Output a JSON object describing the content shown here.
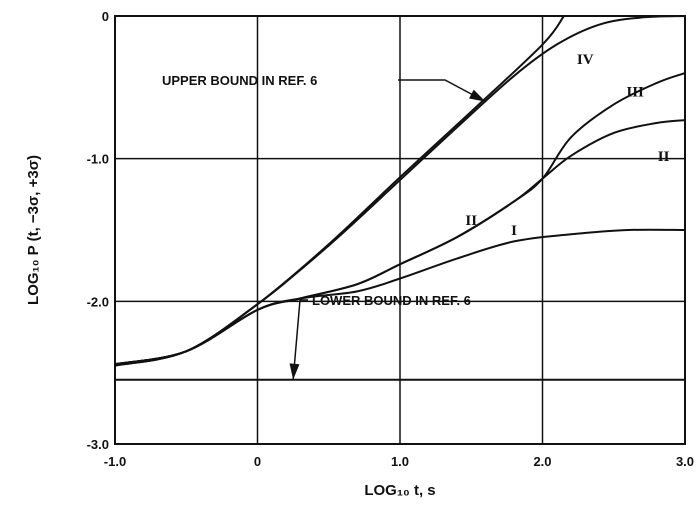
{
  "chart_data": {
    "type": "line",
    "title": "",
    "xlabel": "LOG₁₀ t, s",
    "ylabel": "LOG₁₀ P (t, −3σ, +3σ)",
    "xlim": [
      -1.0,
      3.0
    ],
    "ylim": [
      -3.0,
      0.0
    ],
    "grid": true,
    "x_ticks": [
      -1.0,
      0,
      1.0,
      2.0,
      3.0
    ],
    "x_tick_labels": [
      "-1.0",
      "0",
      "1.0",
      "2.0",
      "3.0"
    ],
    "y_ticks": [
      0,
      -1.0,
      -2.0,
      -3.0
    ],
    "y_tick_labels": [
      "0",
      "-1.0",
      "-2.0",
      "-3.0"
    ],
    "series": [
      {
        "name": "IV",
        "x": [
          -1.0,
          -0.5,
          0.0,
          0.3,
          0.6,
          1.0,
          1.4,
          1.8,
          2.1,
          2.4,
          2.7,
          3.0
        ],
        "y": [
          -2.45,
          -2.35,
          -2.02,
          -1.78,
          -1.52,
          -1.15,
          -0.78,
          -0.42,
          -0.2,
          -0.06,
          -0.01,
          0.0
        ]
      },
      {
        "name": "III",
        "x": [
          -1.0,
          -0.5,
          0.0,
          0.3,
          0.7,
          1.0,
          1.4,
          1.8,
          2.0,
          2.2,
          2.5,
          2.8,
          3.0
        ],
        "y": [
          -2.44,
          -2.35,
          -2.06,
          -1.98,
          -1.88,
          -1.74,
          -1.55,
          -1.3,
          -1.14,
          -0.85,
          -0.62,
          -0.47,
          -0.4
        ]
      },
      {
        "name": "II",
        "x": [
          -1.0,
          -0.5,
          0.0,
          0.3,
          0.7,
          1.0,
          1.4,
          1.8,
          2.0,
          2.2,
          2.5,
          2.8,
          3.0
        ],
        "y": [
          -2.44,
          -2.35,
          -2.06,
          -1.98,
          -1.88,
          -1.74,
          -1.55,
          -1.3,
          -1.14,
          -0.98,
          -0.82,
          -0.75,
          -0.73
        ]
      },
      {
        "name": "I",
        "x": [
          -1.0,
          -0.5,
          0.0,
          0.3,
          0.7,
          1.0,
          1.4,
          1.8,
          2.2,
          2.6,
          3.0
        ],
        "y": [
          -2.44,
          -2.35,
          -2.06,
          -1.98,
          -1.93,
          -1.84,
          -1.7,
          -1.58,
          -1.53,
          -1.5,
          -1.5
        ]
      },
      {
        "name": "UPPER BOUND IN REF. 6",
        "x": [
          -1.0,
          -0.5,
          0.0,
          0.5,
          1.0,
          1.5,
          2.0,
          2.15
        ],
        "y": [
          -2.45,
          -2.35,
          -2.02,
          -1.6,
          -1.13,
          -0.67,
          -0.2,
          0.0
        ]
      },
      {
        "name": "LOWER BOUND IN REF. 6",
        "x": [
          -1.0,
          3.0
        ],
        "y": [
          -2.55,
          -2.55
        ]
      }
    ],
    "annotations": [
      {
        "text": "UPPER BOUND IN REF. 6",
        "arrow_to": [
          1.6,
          -0.6
        ]
      },
      {
        "text": "LOWER BOUND IN REF. 6",
        "arrow_to": [
          0.25,
          -2.55
        ]
      }
    ],
    "curve_labels": [
      {
        "text": "IV",
        "at": [
          2.3,
          -0.3
        ]
      },
      {
        "text": "III",
        "at": [
          2.65,
          -0.53
        ]
      },
      {
        "text": "II",
        "at": [
          2.85,
          -0.98
        ]
      },
      {
        "text": "II",
        "at": [
          1.5,
          -1.43
        ]
      },
      {
        "text": "I",
        "at": [
          1.8,
          -1.5
        ]
      }
    ]
  }
}
